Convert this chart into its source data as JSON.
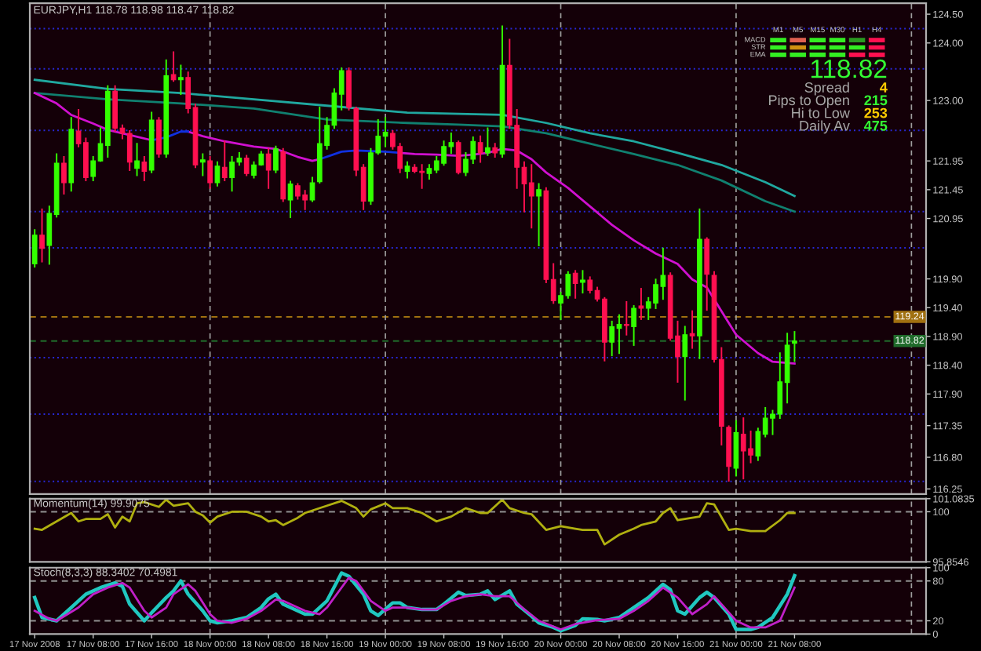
{
  "chart_data": [
    {
      "type": "candlestick",
      "title": "EURJPY,H1 118.78 118.98 118.47 118.82",
      "x": [
        "2008-11-17T00:00",
        "2008-11-17T01:00",
        "2008-11-17T02:00",
        "2008-11-17T03:00",
        "2008-11-17T04:00",
        "2008-11-17T05:00",
        "2008-11-17T06:00",
        "2008-11-17T07:00",
        "2008-11-17T08:00",
        "2008-11-17T09:00",
        "2008-11-17T10:00",
        "2008-11-17T11:00",
        "2008-11-17T12:00",
        "2008-11-17T13:00",
        "2008-11-17T14:00",
        "2008-11-17T15:00",
        "2008-11-17T16:00",
        "2008-11-17T17:00",
        "2008-11-17T18:00",
        "2008-11-17T19:00",
        "2008-11-17T20:00",
        "2008-11-17T21:00",
        "2008-11-17T22:00",
        "2008-11-17T23:00",
        "2008-11-18T00:00",
        "2008-11-18T01:00",
        "2008-11-18T02:00",
        "2008-11-18T03:00",
        "2008-11-18T04:00",
        "2008-11-18T05:00",
        "2008-11-18T06:00",
        "2008-11-18T07:00",
        "2008-11-18T08:00",
        "2008-11-18T09:00",
        "2008-11-18T10:00",
        "2008-11-18T11:00",
        "2008-11-18T12:00",
        "2008-11-18T13:00",
        "2008-11-18T14:00",
        "2008-11-18T15:00",
        "2008-11-18T16:00",
        "2008-11-18T17:00",
        "2008-11-18T18:00",
        "2008-11-18T19:00",
        "2008-11-18T20:00",
        "2008-11-18T21:00",
        "2008-11-18T22:00",
        "2008-11-18T23:00",
        "2008-11-19T00:00",
        "2008-11-19T01:00",
        "2008-11-19T02:00",
        "2008-11-19T03:00",
        "2008-11-19T04:00",
        "2008-11-19T05:00",
        "2008-11-19T06:00",
        "2008-11-19T07:00",
        "2008-11-19T08:00",
        "2008-11-19T09:00",
        "2008-11-19T10:00",
        "2008-11-19T11:00",
        "2008-11-19T12:00",
        "2008-11-19T13:00",
        "2008-11-19T14:00",
        "2008-11-19T15:00",
        "2008-11-19T16:00",
        "2008-11-19T17:00",
        "2008-11-19T18:00",
        "2008-11-19T19:00",
        "2008-11-19T20:00",
        "2008-11-19T21:00",
        "2008-11-19T22:00",
        "2008-11-19T23:00",
        "2008-11-20T00:00",
        "2008-11-20T01:00",
        "2008-11-20T02:00",
        "2008-11-20T03:00",
        "2008-11-20T04:00",
        "2008-11-20T05:00",
        "2008-11-20T06:00",
        "2008-11-20T07:00",
        "2008-11-20T08:00",
        "2008-11-20T09:00",
        "2008-11-20T10:00",
        "2008-11-20T11:00",
        "2008-11-20T12:00",
        "2008-11-20T13:00",
        "2008-11-20T14:00",
        "2008-11-20T15:00",
        "2008-11-20T16:00",
        "2008-11-20T17:00",
        "2008-11-20T18:00",
        "2008-11-20T19:00",
        "2008-11-20T20:00",
        "2008-11-20T21:00",
        "2008-11-20T22:00",
        "2008-11-20T23:00",
        "2008-11-21T00:00",
        "2008-11-21T01:00",
        "2008-11-21T02:00",
        "2008-11-21T03:00",
        "2008-11-21T04:00",
        "2008-11-21T05:00",
        "2008-11-21T06:00",
        "2008-11-21T07:00",
        "2008-11-21T08:00"
      ],
      "ohlc": [
        [
          120.16,
          120.75,
          120.11,
          120.66
        ],
        [
          120.66,
          121.11,
          120.2,
          120.43
        ],
        [
          120.48,
          121.16,
          120.16,
          121.04
        ],
        [
          121.02,
          122.07,
          120.98,
          121.91
        ],
        [
          121.91,
          122.02,
          121.38,
          121.57
        ],
        [
          121.57,
          122.7,
          121.43,
          122.5
        ],
        [
          122.47,
          122.84,
          122.2,
          122.25
        ],
        [
          122.27,
          122.34,
          121.61,
          121.66
        ],
        [
          121.68,
          122.02,
          121.61,
          121.95
        ],
        [
          121.95,
          122.52,
          121.95,
          122.25
        ],
        [
          122.22,
          123.25,
          122.02,
          123.16
        ],
        [
          123.16,
          123.25,
          122.47,
          122.52
        ],
        [
          122.52,
          122.57,
          122.34,
          122.43
        ],
        [
          122.43,
          122.47,
          121.79,
          121.93
        ],
        [
          121.82,
          122.25,
          121.7,
          121.95
        ],
        [
          121.93,
          122.02,
          121.61,
          121.77
        ],
        [
          121.79,
          122.79,
          121.75,
          122.66
        ],
        [
          122.66,
          122.7,
          122.02,
          122.07
        ],
        [
          122.07,
          123.7,
          122.02,
          123.43
        ],
        [
          123.45,
          123.84,
          123.34,
          123.36
        ],
        [
          123.36,
          123.61,
          123.11,
          123.4
        ],
        [
          123.4,
          123.49,
          122.79,
          122.86
        ],
        [
          122.88,
          122.93,
          121.84,
          121.88
        ],
        [
          121.93,
          122.07,
          121.7,
          121.97
        ],
        [
          121.95,
          122.02,
          121.48,
          121.57
        ],
        [
          121.57,
          121.93,
          121.52,
          121.86
        ],
        [
          121.84,
          122.29,
          121.61,
          121.66
        ],
        [
          121.66,
          122.02,
          121.43,
          121.93
        ],
        [
          121.93,
          122.09,
          121.88,
          122.0
        ],
        [
          122.0,
          122.04,
          121.7,
          121.73
        ],
        [
          121.7,
          121.93,
          121.66,
          121.88
        ],
        [
          121.88,
          122.11,
          121.88,
          122.07
        ],
        [
          122.07,
          122.16,
          121.48,
          121.79
        ],
        [
          121.79,
          122.2,
          121.75,
          122.16
        ],
        [
          122.11,
          122.16,
          121.25,
          121.29
        ],
        [
          121.27,
          121.59,
          120.97,
          121.55
        ],
        [
          121.52,
          121.55,
          121.29,
          121.34
        ],
        [
          121.36,
          121.43,
          121.11,
          121.27
        ],
        [
          121.27,
          121.66,
          121.25,
          121.57
        ],
        [
          121.59,
          122.88,
          121.57,
          122.25
        ],
        [
          122.22,
          122.7,
          122.16,
          122.57
        ],
        [
          122.57,
          123.2,
          122.52,
          123.13
        ],
        [
          123.11,
          123.56,
          122.84,
          123.52
        ],
        [
          123.52,
          123.56,
          122.84,
          122.88
        ],
        [
          122.86,
          122.88,
          121.7,
          121.79
        ],
        [
          121.84,
          121.88,
          121.11,
          121.25
        ],
        [
          121.25,
          122.16,
          121.2,
          122.09
        ],
        [
          122.09,
          122.66,
          122.07,
          122.38
        ],
        [
          122.38,
          122.7,
          122.2,
          122.45
        ],
        [
          122.43,
          122.47,
          122.16,
          122.2
        ],
        [
          122.2,
          122.25,
          121.75,
          121.82
        ],
        [
          121.77,
          121.93,
          121.66,
          121.86
        ],
        [
          121.84,
          121.88,
          121.75,
          121.77
        ],
        [
          121.77,
          121.88,
          121.48,
          121.75
        ],
        [
          121.73,
          121.88,
          121.64,
          121.82
        ],
        [
          121.79,
          122.02,
          121.75,
          121.95
        ],
        [
          121.91,
          122.29,
          121.88,
          122.2
        ],
        [
          122.2,
          122.43,
          122.09,
          122.27
        ],
        [
          122.27,
          122.29,
          121.73,
          121.75
        ],
        [
          121.75,
          122.09,
          121.7,
          121.98
        ],
        [
          121.98,
          122.36,
          121.91,
          122.29
        ],
        [
          122.27,
          122.38,
          121.93,
          122.09
        ],
        [
          122.09,
          122.52,
          122.05,
          122.18
        ],
        [
          122.18,
          122.25,
          122.02,
          122.09
        ],
        [
          122.07,
          124.29,
          122.02,
          123.61
        ],
        [
          123.61,
          124.06,
          122.52,
          122.57
        ],
        [
          122.57,
          122.84,
          121.48,
          121.84
        ],
        [
          121.84,
          121.93,
          121.07,
          121.55
        ],
        [
          121.57,
          121.88,
          120.79,
          121.34
        ],
        [
          121.34,
          121.55,
          120.48,
          121.45
        ],
        [
          121.43,
          121.48,
          119.84,
          119.89
        ],
        [
          119.89,
          120.16,
          119.48,
          119.52
        ],
        [
          119.48,
          119.66,
          119.2,
          119.61
        ],
        [
          119.61,
          120.02,
          119.57,
          119.98
        ],
        [
          120.0,
          120.04,
          119.57,
          119.82
        ],
        [
          119.84,
          120.04,
          119.66,
          119.88
        ],
        [
          119.88,
          119.93,
          119.66,
          119.7
        ],
        [
          119.7,
          119.75,
          119.52,
          119.55
        ],
        [
          119.55,
          119.57,
          118.48,
          118.8
        ],
        [
          118.8,
          119.16,
          118.57,
          119.07
        ],
        [
          119.04,
          119.27,
          118.61,
          119.11
        ],
        [
          119.11,
          119.5,
          118.93,
          119.09
        ],
        [
          119.07,
          119.43,
          118.75,
          119.39
        ],
        [
          119.43,
          119.73,
          119.2,
          119.39
        ],
        [
          119.39,
          119.57,
          119.2,
          119.5
        ],
        [
          119.48,
          119.89,
          119.39,
          119.8
        ],
        [
          119.77,
          120.43,
          119.55,
          119.96
        ],
        [
          119.96,
          120.0,
          118.84,
          118.87
        ],
        [
          118.91,
          119.16,
          118.11,
          118.55
        ],
        [
          118.55,
          119.07,
          117.8,
          118.93
        ],
        [
          118.95,
          119.34,
          118.7,
          118.91
        ],
        [
          118.91,
          121.11,
          118.52,
          120.59
        ],
        [
          120.59,
          120.61,
          119.36,
          119.98
        ],
        [
          119.96,
          120.02,
          118.46,
          118.5
        ],
        [
          118.5,
          118.7,
          117.02,
          117.34
        ],
        [
          117.32,
          117.34,
          116.39,
          116.64
        ],
        [
          116.61,
          117.43,
          116.48,
          117.23
        ],
        [
          117.2,
          117.48,
          116.43,
          116.91
        ],
        [
          116.95,
          117.25,
          116.71,
          116.84
        ],
        [
          116.82,
          117.3,
          116.75,
          117.25
        ],
        [
          117.2,
          117.66,
          117.16,
          117.48
        ],
        [
          117.48,
          117.61,
          117.2,
          117.55
        ],
        [
          117.55,
          118.61,
          117.48,
          118.11
        ],
        [
          118.1,
          118.95,
          117.75,
          118.75
        ],
        [
          118.78,
          118.98,
          118.47,
          118.82
        ]
      ],
      "series": [
        {
          "type": "line",
          "color": "#20a8a0",
          "x": [
            "2008-11-17T00:00",
            "2008-11-17T10:00",
            "2008-11-17T20:00",
            "2008-11-18T06:00",
            "2008-11-18T16:00",
            "2008-11-19T03:00",
            "2008-11-19T10:00",
            "2008-11-19T16:00",
            "2008-11-19T22:00",
            "2008-11-20T04:00",
            "2008-11-20T10:00",
            "2008-11-20T16:00",
            "2008-11-20T22:00",
            "2008-11-21T04:00",
            "2008-11-21T08:00"
          ],
          "values": [
            123.36,
            123.2,
            123.13,
            123.02,
            122.91,
            122.79,
            122.77,
            122.75,
            122.61,
            122.43,
            122.29,
            122.09,
            121.88,
            121.58,
            121.34
          ]
        },
        {
          "type": "line",
          "color": "#108070",
          "x": [
            "2008-11-17T00:00",
            "2008-11-17T10:00",
            "2008-11-17T20:00",
            "2008-11-18T06:00",
            "2008-11-18T16:00",
            "2008-11-19T03:00",
            "2008-11-19T10:00",
            "2008-11-19T16:00",
            "2008-11-19T22:00",
            "2008-11-20T04:00",
            "2008-11-20T10:00",
            "2008-11-20T16:00",
            "2008-11-20T22:00",
            "2008-11-21T04:00",
            "2008-11-21T08:00"
          ],
          "values": [
            123.13,
            123.02,
            122.95,
            122.86,
            122.67,
            122.61,
            122.58,
            122.55,
            122.43,
            122.25,
            122.07,
            121.88,
            121.61,
            121.25,
            121.07
          ]
        },
        {
          "type": "line",
          "color": "#d010d0",
          "x": [
            "2008-11-17T00:00",
            "2008-11-17T03:00",
            "2008-11-17T05:00",
            "2008-11-17T08:00",
            "2008-11-17T10:00",
            "2008-11-17T13:00",
            "2008-11-17T16:00",
            "2008-11-17T18:00",
            "2008-11-17T20:00",
            "2008-11-17T21:00",
            "2008-11-17T23:00",
            "2008-11-18T02:00",
            "2008-11-18T06:00",
            "2008-11-18T09:00",
            "2008-11-18T12:00",
            "2008-11-18T14:00",
            "2008-11-18T15:00",
            "2008-11-18T18:00",
            "2008-11-18T20:00",
            "2008-11-19T00:00",
            "2008-11-19T02:00",
            "2008-11-19T04:00",
            "2008-11-19T07:00",
            "2008-11-19T10:00",
            "2008-11-19T12:00",
            "2008-11-19T14:00",
            "2008-11-19T16:00",
            "2008-11-19T18:00",
            "2008-11-19T20:00",
            "2008-11-19T22:00",
            "2008-11-20T01:00",
            "2008-11-20T04:00",
            "2008-11-20T07:00",
            "2008-11-20T10:00",
            "2008-11-20T13:00",
            "2008-11-20T16:00",
            "2008-11-20T18:00",
            "2008-11-20T20:00",
            "2008-11-20T22:00",
            "2008-11-21T00:00",
            "2008-11-21T03:00",
            "2008-11-21T05:00",
            "2008-11-21T08:00"
          ],
          "values": [
            123.13,
            122.95,
            122.75,
            122.6,
            122.49,
            122.4,
            122.31,
            null,
            null,
            122.46,
            122.38,
            122.29,
            122.2,
            122.16,
            122.02,
            121.95,
            121.98,
            null,
            null,
            null,
            122.09,
            122.07,
            122.06,
            122.04,
            122.06,
            122.09,
            122.16,
            122.13,
            121.98,
            121.75,
            121.48,
            121.16,
            120.84,
            120.57,
            120.34,
            120.16,
            119.89,
            119.75,
            119.34,
            118.93,
            118.61,
            118.46,
            118.43
          ]
        },
        {
          "type": "line",
          "color": "#1030e0",
          "x": [
            "2008-11-17T16:00",
            "2008-11-17T18:00",
            "2008-11-17T20:00",
            "2008-11-17T21:00",
            "2008-11-18T06:00",
            "2008-11-18T15:00",
            "2008-11-18T18:00",
            "2008-11-18T20:00",
            "2008-11-19T00:00",
            "2008-11-19T02:00"
          ],
          "values": [
            122.31,
            122.36,
            122.46,
            122.46,
            null,
            121.98,
            122.11,
            122.13,
            122.11,
            122.09
          ]
        }
      ],
      "xlim": [
        "2008-11-16T23:20",
        "2008-11-22T02:00"
      ],
      "ylim": [
        116.16,
        124.69
      ],
      "yticks": [
        {
          "value": 124.5,
          "label": "124.50"
        },
        {
          "value": 124,
          "label": "124.00"
        },
        {
          "value": 123,
          "label": "123.00"
        },
        121.95,
        121.45,
        120.95,
        {
          "value": 119.9,
          "label": "119.90"
        },
        {
          "value": 119.4,
          "label": "119.40"
        },
        {
          "value": 118.9,
          "label": "118.90"
        },
        {
          "value": 118.4,
          "label": "118.40"
        },
        {
          "value": 117.9,
          "label": "117.90"
        },
        117.35,
        {
          "value": 116.8,
          "label": "116.80"
        },
        116.25
      ],
      "tick_labels": "y",
      "ref_lines": [
        {
          "axis": "y",
          "value": 124.25,
          "color": "#2828d8",
          "line_style": "dotted"
        },
        {
          "axis": "y",
          "value": 123.55,
          "color": "#2828d8",
          "line_style": "dotted"
        },
        {
          "axis": "y",
          "value": 122.48,
          "color": "#2828d8",
          "line_style": "dotted"
        },
        {
          "axis": "y",
          "value": 121.07,
          "color": "#2828d8",
          "line_style": "dotted"
        },
        {
          "axis": "y",
          "value": 120.44,
          "color": "#2828d8",
          "line_style": "dotted"
        },
        {
          "axis": "y",
          "value": 118.53,
          "color": "#2828d8",
          "line_style": "dotted"
        },
        {
          "axis": "y",
          "value": 117.55,
          "color": "#2828d8",
          "line_style": "dotted"
        },
        {
          "axis": "y",
          "value": 116.38,
          "color": "#2828d8",
          "line_style": "dotted"
        },
        {
          "axis": "y",
          "value": 119.24,
          "label": "119.24",
          "color": "#a07010",
          "line_style": "dashed"
        },
        {
          "axis": "y",
          "value": 118.82,
          "label": "118.82",
          "color": "#1f6a2a",
          "line_style": "dashed"
        },
        {
          "axis": "x",
          "value": "2008-11-18T00:00",
          "color": "#a0a0a0",
          "line_style": "dashed"
        },
        {
          "axis": "x",
          "value": "2008-11-19T00:00",
          "color": "#a0a0a0",
          "line_style": "dashed"
        },
        {
          "axis": "x",
          "value": "2008-11-20T00:00",
          "color": "#a0a0a0",
          "line_style": "dashed"
        },
        {
          "axis": "x",
          "value": "2008-11-21T00:00",
          "color": "#a0a0a0",
          "line_style": "dashed"
        },
        {
          "axis": "x",
          "value": "2008-11-22T00:00",
          "color": "#a0a0a0",
          "line_style": "dashed"
        }
      ],
      "annotations": [
        "M1",
        "M5",
        "M15",
        "M30",
        "H1",
        "H4",
        "MACD",
        "STR",
        "EMA",
        "118.82",
        "Spread",
        "4",
        "Pips to Open",
        "215",
        "Hi to Low",
        "253",
        "Daily Av",
        "475"
      ]
    },
    {
      "type": "line",
      "title": "Momentum(14) 99.9075",
      "series": [
        {
          "color": "#b0b010",
          "x": [
            "2008-11-17T00:00",
            "2008-11-17T01:00",
            "2008-11-17T03:00",
            "2008-11-17T05:00",
            "2008-11-17T06:00",
            "2008-11-17T07:00",
            "2008-11-17T09:00",
            "2008-11-17T10:00",
            "2008-11-17T11:00",
            "2008-11-17T12:00",
            "2008-11-17T13:00",
            "2008-11-17T14:00",
            "2008-11-17T15:00",
            "2008-11-17T17:00",
            "2008-11-17T18:00",
            "2008-11-17T19:00",
            "2008-11-17T21:00",
            "2008-11-17T22:00",
            "2008-11-17T23:00",
            "2008-11-18T00:00",
            "2008-11-18T01:00",
            "2008-11-18T03:00",
            "2008-11-18T05:00",
            "2008-11-18T07:00",
            "2008-11-18T08:00",
            "2008-11-18T09:00",
            "2008-11-18T10:00",
            "2008-11-18T12:00",
            "2008-11-18T13:00",
            "2008-11-18T16:00",
            "2008-11-18T18:00",
            "2008-11-18T20:00",
            "2008-11-18T21:00",
            "2008-11-18T22:00",
            "2008-11-19T00:00",
            "2008-11-19T01:00",
            "2008-11-19T03:00",
            "2008-11-19T05:00",
            "2008-11-19T07:00",
            "2008-11-19T09:00",
            "2008-11-19T11:00",
            "2008-11-19T13:00",
            "2008-11-19T14:00",
            "2008-11-19T16:00",
            "2008-11-19T17:00",
            "2008-11-19T19:00",
            "2008-11-19T20:00",
            "2008-11-19T22:00",
            "2008-11-20T00:00",
            "2008-11-20T02:00",
            "2008-11-20T03:00",
            "2008-11-20T05:00",
            "2008-11-20T06:00",
            "2008-11-20T08:00",
            "2008-11-20T10:00",
            "2008-11-20T11:00",
            "2008-11-20T13:00",
            "2008-11-20T14:00",
            "2008-11-20T15:00",
            "2008-11-20T16:00",
            "2008-11-20T17:00",
            "2008-11-20T19:00",
            "2008-11-20T20:00",
            "2008-11-20T21:00",
            "2008-11-20T23:00",
            "2008-11-21T00:00",
            "2008-11-21T02:00",
            "2008-11-21T04:00",
            "2008-11-21T06:00",
            "2008-11-21T07:00",
            "2008-11-21T08:00"
          ],
          "values": [
            98.6,
            98.5,
            99.2,
            99.9,
            99.2,
            99.4,
            99.4,
            99.8,
            98.7,
            99.6,
            99.2,
            100.7,
            100.8,
            100.4,
            101.0,
            100.5,
            100.7,
            100.0,
            99.7,
            99.1,
            99.6,
            100.0,
            100.0,
            99.6,
            99.2,
            99.3,
            98.9,
            99.5,
            99.9,
            100.5,
            100.9,
            100.3,
            99.6,
            100.2,
            100.7,
            100.3,
            100.3,
            99.9,
            99.2,
            99.6,
            100.3,
            99.9,
            99.9,
            101.0,
            100.3,
            99.9,
            99.8,
            98.5,
            98.8,
            98.6,
            98.5,
            98.5,
            97.3,
            98.1,
            98.6,
            98.9,
            99.2,
            99.9,
            100.3,
            99.3,
            99.4,
            99.6,
            100.7,
            100.6,
            98.5,
            98.6,
            98.4,
            98.4,
            99.3,
            99.9,
            99.9
          ]
        }
      ],
      "xlim": [
        "2008-11-16T23:20",
        "2008-11-22T02:00"
      ],
      "ylim": [
        95.8546,
        101.0835
      ],
      "yticks": [
        101.0835,
        100,
        95.8546
      ],
      "tick_labels": "y",
      "ref_lines": [
        {
          "axis": "y",
          "value": 100,
          "color": "#909090",
          "line_style": "dashed"
        },
        {
          "axis": "x",
          "value": "2008-11-18T00:00",
          "color": "#a0a0a0",
          "line_style": "dashed"
        },
        {
          "axis": "x",
          "value": "2008-11-19T00:00",
          "color": "#a0a0a0",
          "line_style": "dashed"
        },
        {
          "axis": "x",
          "value": "2008-11-20T00:00",
          "color": "#a0a0a0",
          "line_style": "dashed"
        },
        {
          "axis": "x",
          "value": "2008-11-21T00:00",
          "color": "#a0a0a0",
          "line_style": "dashed"
        },
        {
          "axis": "x",
          "value": "2008-11-22T00:00",
          "color": "#a0a0a0",
          "line_style": "dashed"
        }
      ]
    },
    {
      "type": "line",
      "title": "Stoch(8,3,3) 88.3402 70.4981",
      "series": [
        {
          "color": "#20c8c0",
          "x": [
            "2008-11-17T00:00",
            "2008-11-17T01:00",
            "2008-11-17T03:00",
            "2008-11-17T05:00",
            "2008-11-17T07:00",
            "2008-11-17T09:00",
            "2008-11-17T11:00",
            "2008-11-17T12:00",
            "2008-11-17T13:00",
            "2008-11-17T15:00",
            "2008-11-17T16:00",
            "2008-11-17T18:00",
            "2008-11-17T19:00",
            "2008-11-17T20:00",
            "2008-11-17T21:00",
            "2008-11-17T23:00",
            "2008-11-18T00:00",
            "2008-11-18T01:00",
            "2008-11-18T03:00",
            "2008-11-18T05:00",
            "2008-11-18T07:00",
            "2008-11-18T08:00",
            "2008-11-18T09:00",
            "2008-11-18T10:00",
            "2008-11-18T11:00",
            "2008-11-18T13:00",
            "2008-11-18T14:00",
            "2008-11-18T16:00",
            "2008-11-18T18:00",
            "2008-11-18T19:00",
            "2008-11-18T21:00",
            "2008-11-18T22:00",
            "2008-11-18T23:00",
            "2008-11-19T01:00",
            "2008-11-19T02:00",
            "2008-11-19T03:00",
            "2008-11-19T05:00",
            "2008-11-19T07:00",
            "2008-11-19T08:00",
            "2008-11-19T10:00",
            "2008-11-19T11:00",
            "2008-11-19T13:00",
            "2008-11-19T14:00",
            "2008-11-19T15:00",
            "2008-11-19T17:00",
            "2008-11-19T18:00",
            "2008-11-19T20:00",
            "2008-11-19T21:00",
            "2008-11-19T23:00",
            "2008-11-20T00:00",
            "2008-11-20T02:00",
            "2008-11-20T03:00",
            "2008-11-20T05:00",
            "2008-11-20T06:00",
            "2008-11-20T08:00",
            "2008-11-20T10:00",
            "2008-11-20T12:00",
            "2008-11-20T14:00",
            "2008-11-20T15:00",
            "2008-11-20T16:00",
            "2008-11-20T17:00",
            "2008-11-20T19:00",
            "2008-11-20T20:00",
            "2008-11-20T21:00",
            "2008-11-20T23:00",
            "2008-11-21T00:00",
            "2008-11-21T02:00",
            "2008-11-21T03:00",
            "2008-11-21T05:00",
            "2008-11-21T07:00",
            "2008-11-21T08:00"
          ],
          "values": [
            55,
            25,
            20,
            40,
            60,
            70,
            77,
            72,
            45,
            20,
            32,
            55,
            65,
            80,
            60,
            35,
            20,
            17,
            20,
            25,
            40,
            53,
            60,
            45,
            40,
            30,
            30,
            50,
            92,
            87,
            60,
            35,
            28,
            47,
            47,
            40,
            37,
            37,
            45,
            63,
            58,
            60,
            65,
            52,
            65,
            45,
            27,
            17,
            10,
            5,
            13,
            23,
            22,
            20,
            25,
            40,
            55,
            75,
            67,
            35,
            30,
            55,
            63,
            55,
            30,
            7,
            7,
            10,
            25,
            60,
            88
          ]
        },
        {
          "color": "#c020c8",
          "x": [
            "2008-11-17T00:00",
            "2008-11-17T02:00",
            "2008-11-17T03:00",
            "2008-11-17T06:00",
            "2008-11-17T08:00",
            "2008-11-17T10:00",
            "2008-11-17T12:00",
            "2008-11-17T13:00",
            "2008-11-17T15:00",
            "2008-11-17T16:00",
            "2008-11-17T18:00",
            "2008-11-17T19:00",
            "2008-11-17T21:00",
            "2008-11-17T22:00",
            "2008-11-18T00:00",
            "2008-11-18T01:00",
            "2008-11-18T03:00",
            "2008-11-18T05:00",
            "2008-11-18T07:00",
            "2008-11-18T09:00",
            "2008-11-18T10:00",
            "2008-11-18T13:00",
            "2008-11-18T15:00",
            "2008-11-18T16:00",
            "2008-11-18T19:00",
            "2008-11-18T20:00",
            "2008-11-18T22:00",
            "2008-11-19T00:00",
            "2008-11-19T01:00",
            "2008-11-19T03:00",
            "2008-11-19T05:00",
            "2008-11-19T07:00",
            "2008-11-19T09:00",
            "2008-11-19T11:00",
            "2008-11-19T13:00",
            "2008-11-19T15:00",
            "2008-11-19T17:00",
            "2008-11-19T19:00",
            "2008-11-19T21:00",
            "2008-11-20T00:00",
            "2008-11-20T02:00",
            "2008-11-20T05:00",
            "2008-11-20T08:00",
            "2008-11-20T10:00",
            "2008-11-20T12:00",
            "2008-11-20T14:00",
            "2008-11-20T16:00",
            "2008-11-20T18:00",
            "2008-11-20T20:00",
            "2008-11-20T21:00",
            "2008-11-20T22:00",
            "2008-11-21T00:00",
            "2008-11-21T02:00",
            "2008-11-21T04:00",
            "2008-11-21T06:00",
            "2008-11-21T08:00"
          ],
          "values": [
            35,
            23,
            20,
            40,
            60,
            70,
            77,
            70,
            35,
            25,
            40,
            60,
            75,
            65,
            30,
            20,
            17,
            23,
            35,
            52,
            50,
            35,
            30,
            40,
            85,
            80,
            50,
            35,
            40,
            40,
            37,
            37,
            50,
            57,
            60,
            57,
            57,
            37,
            20,
            7,
            15,
            21,
            23,
            35,
            50,
            70,
            55,
            30,
            45,
            57,
            45,
            20,
            10,
            10,
            20,
            70
          ]
        }
      ],
      "xlim": [
        "2008-11-16T23:20",
        "2008-11-22T02:00"
      ],
      "ylim": [
        0,
        100
      ],
      "yticks": [
        100,
        80,
        20,
        0
      ],
      "xticks": [
        {
          "value": "2008-11-17T00:00",
          "label": "17 Nov 2008"
        },
        {
          "value": "2008-11-17T08:00",
          "label": "17 Nov 08:00"
        },
        {
          "value": "2008-11-17T16:00",
          "label": "17 Nov 16:00"
        },
        {
          "value": "2008-11-18T00:00",
          "label": "18 Nov 00:00"
        },
        {
          "value": "2008-11-18T08:00",
          "label": "18 Nov 08:00"
        },
        {
          "value": "2008-11-18T16:00",
          "label": "18 Nov 16:00"
        },
        {
          "value": "2008-11-19T00:00",
          "label": "19 Nov 00:00"
        },
        {
          "value": "2008-11-19T08:00",
          "label": "19 Nov 08:00"
        },
        {
          "value": "2008-11-19T16:00",
          "label": "19 Nov 16:00"
        },
        {
          "value": "2008-11-20T00:00",
          "label": "20 Nov 00:00"
        },
        {
          "value": "2008-11-20T08:00",
          "label": "20 Nov 08:00"
        },
        {
          "value": "2008-11-20T16:00",
          "label": "20 Nov 16:00"
        },
        {
          "value": "2008-11-21T00:00",
          "label": "21 Nov 00:00"
        },
        {
          "value": "2008-11-21T08:00",
          "label": "21 Nov 08:00"
        }
      ],
      "ref_lines": [
        {
          "axis": "y",
          "value": 80,
          "color": "#909090",
          "line_style": "dashed"
        },
        {
          "axis": "y",
          "value": 20,
          "color": "#909090",
          "line_style": "dashed"
        },
        {
          "axis": "x",
          "value": "2008-11-18T00:00",
          "color": "#a0a0a0",
          "line_style": "dashed"
        },
        {
          "axis": "x",
          "value": "2008-11-19T00:00",
          "color": "#a0a0a0",
          "line_style": "dashed"
        },
        {
          "axis": "x",
          "value": "2008-11-20T00:00",
          "color": "#a0a0a0",
          "line_style": "dashed"
        },
        {
          "axis": "x",
          "value": "2008-11-21T00:00",
          "color": "#a0a0a0",
          "line_style": "dashed"
        },
        {
          "axis": "x",
          "value": "2008-11-22T00:00",
          "color": "#a0a0a0",
          "line_style": "dashed"
        }
      ]
    }
  ]
}
